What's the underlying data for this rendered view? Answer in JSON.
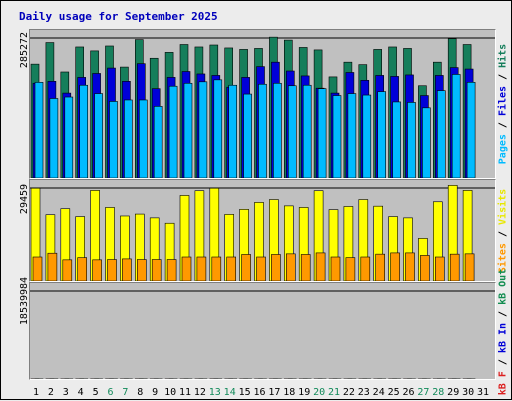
{
  "title": "Daily usage for September 2025",
  "colors": {
    "hits": "#157e5b",
    "files": "#0000d8",
    "pages": "#00bbff",
    "visits": "#ffff00",
    "sites": "#ff9900",
    "kb_in": "#118d50",
    "kb_out": "#db2020",
    "day_normal": "#000000",
    "day_weekend": "#128a5a"
  },
  "legend": {
    "hits_panel": [
      {
        "label": "Pages",
        "color": "#00bbff"
      },
      {
        "label": " / ",
        "color": "#000000"
      },
      {
        "label": "Files",
        "color": "#0000d8"
      },
      {
        "label": " / ",
        "color": "#000000"
      },
      {
        "label": "Hits",
        "color": "#157e5b"
      }
    ],
    "sites_panel": [
      {
        "label": "Sites",
        "color": "#ff9900"
      },
      {
        "label": " / ",
        "color": "#000000"
      },
      {
        "label": "Visits",
        "color": "#e8e800"
      }
    ],
    "kb_panel": [
      {
        "label": "kB F",
        "color": "#db2020"
      },
      {
        "label": " / ",
        "color": "#000000"
      },
      {
        "label": "kB In",
        "color": "#0000d8"
      },
      {
        "label": " / ",
        "color": "#000000"
      },
      {
        "label": "kB Out",
        "color": "#118d50"
      }
    ]
  },
  "chart_data": [
    {
      "type": "bar",
      "name": "hits-files-pages",
      "ymax_label": "285272",
      "ylim": [
        0,
        285272
      ],
      "categories": [
        "1",
        "2",
        "3",
        "4",
        "5",
        "6",
        "7",
        "8",
        "9",
        "10",
        "11",
        "12",
        "13",
        "14",
        "15",
        "16",
        "17",
        "18",
        "19",
        "20",
        "21",
        "22",
        "23",
        "24",
        "25",
        "26",
        "27",
        "28",
        "29",
        "30",
        "31"
      ],
      "weekend_days": [
        "6",
        "7",
        "13",
        "14",
        "20",
        "21",
        "27",
        "28"
      ],
      "series": [
        {
          "name": "Hits",
          "values": [
            232000,
            276000,
            216000,
            267000,
            259000,
            269000,
            226000,
            282000,
            244000,
            256000,
            272000,
            267000,
            271000,
            265000,
            262000,
            264000,
            287000,
            281000,
            266000,
            261000,
            206000,
            236000,
            231000,
            262000,
            267000,
            264000,
            188000,
            236000,
            284000,
            272000,
            0
          ]
        },
        {
          "name": "Files",
          "values": [
            193000,
            197000,
            173000,
            205000,
            213000,
            224000,
            197000,
            233000,
            182000,
            205000,
            217000,
            212000,
            209000,
            185000,
            205000,
            227000,
            236000,
            218000,
            208000,
            183000,
            173000,
            215000,
            199000,
            209000,
            207000,
            210000,
            168000,
            209000,
            225000,
            222000,
            0
          ]
        },
        {
          "name": "Pages",
          "values": [
            195000,
            162000,
            165000,
            189000,
            172000,
            156000,
            159000,
            159000,
            146000,
            187000,
            193000,
            196000,
            200000,
            189000,
            171000,
            191000,
            193000,
            188000,
            189000,
            182000,
            168000,
            172000,
            169000,
            176000,
            155000,
            154000,
            143000,
            178000,
            211000,
            195000,
            0
          ]
        }
      ]
    },
    {
      "type": "bar",
      "name": "visits-sites",
      "ymax_label": "29459",
      "ylim": [
        0,
        29459
      ],
      "categories": [
        "1",
        "2",
        "3",
        "4",
        "5",
        "6",
        "7",
        "8",
        "9",
        "10",
        "11",
        "12",
        "13",
        "14",
        "15",
        "16",
        "17",
        "18",
        "19",
        "20",
        "21",
        "22",
        "23",
        "24",
        "25",
        "26",
        "27",
        "28",
        "29",
        "30",
        "31"
      ],
      "series": [
        {
          "name": "Visits",
          "values": [
            29400,
            21000,
            22900,
            20400,
            28700,
            23300,
            20600,
            21200,
            20000,
            18300,
            27100,
            28600,
            29400,
            21100,
            22700,
            24900,
            25800,
            23800,
            23300,
            28600,
            22600,
            23600,
            25800,
            23700,
            20400,
            20000,
            13500,
            25100,
            30300,
            28700,
            0
          ]
        },
        {
          "name": "Sites",
          "values": [
            7600,
            8800,
            6700,
            7400,
            6700,
            6800,
            7000,
            6800,
            6800,
            6800,
            7600,
            7600,
            7600,
            7600,
            8400,
            7600,
            8400,
            8600,
            8400,
            8900,
            7600,
            7400,
            7600,
            8500,
            8900,
            8900,
            8100,
            7600,
            8500,
            8600,
            0
          ]
        }
      ]
    },
    {
      "type": "bar",
      "name": "kb-traffic",
      "ymax_label": "18539984",
      "ylim": [
        0,
        18539984
      ],
      "categories": [
        "1",
        "2",
        "3",
        "4",
        "5",
        "6",
        "7",
        "8",
        "9",
        "10",
        "11",
        "12",
        "13",
        "14",
        "15",
        "16",
        "17",
        "18",
        "19",
        "20",
        "21",
        "22",
        "23",
        "24",
        "25",
        "26",
        "27",
        "28",
        "29",
        "30",
        "31"
      ],
      "series": [
        {
          "name": "kB F",
          "values": [
            11800,
            16200,
            9400,
            12800,
            13400,
            15700,
            13100,
            18400,
            10600,
            11500,
            13300,
            12800,
            15900,
            14800,
            13500,
            12200,
            13700,
            14200,
            13100,
            12400,
            10200,
            13100,
            13500,
            12600,
            13900,
            11700,
            8500,
            11500,
            15600,
            14900,
            0
          ]
        },
        {
          "name": "kB Out",
          "values": [
            12100,
            16700,
            9700,
            13100,
            14000,
            16200,
            13400,
            18700,
            11000,
            11800,
            13700,
            13100,
            16200,
            15300,
            13900,
            12600,
            14200,
            14600,
            13400,
            12800,
            10500,
            13500,
            14000,
            12900,
            14200,
            11900,
            8900,
            11900,
            16000,
            15300,
            0
          ]
        }
      ]
    }
  ]
}
